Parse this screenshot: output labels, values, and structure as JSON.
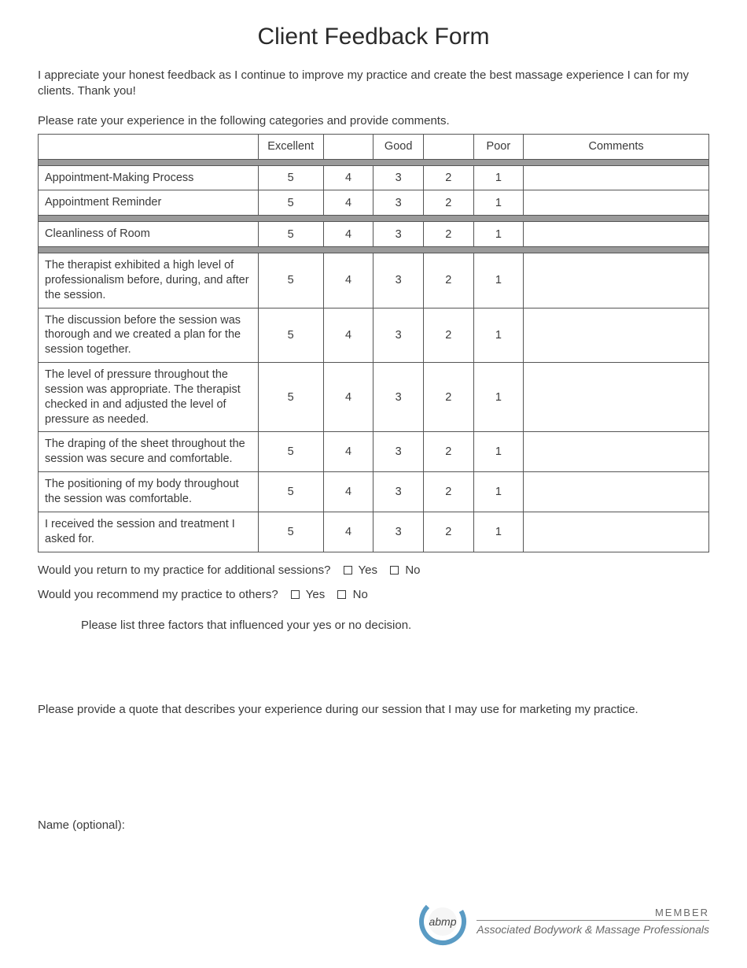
{
  "title": "Client Feedback Form",
  "intro": "I appreciate your honest feedback as I continue to improve my practice and create the best massage experience I can for my clients. Thank you!",
  "instruct": "Please rate your experience in the following categories and provide comments.",
  "table": {
    "headers": {
      "blank": "",
      "excellent": "Excellent",
      "c4": "",
      "good": "Good",
      "c2": "",
      "poor": "Poor",
      "comments": "Comments"
    },
    "rating_values": [
      "5",
      "4",
      "3",
      "2",
      "1"
    ],
    "groups": [
      {
        "rows": [
          {
            "label": "Appointment-Making Process"
          },
          {
            "label": "Appointment Reminder"
          }
        ]
      },
      {
        "rows": [
          {
            "label": "Cleanliness of Room"
          }
        ]
      },
      {
        "rows": [
          {
            "label": "The therapist exhibited a high level of professionalism before, during, and after the session."
          },
          {
            "label": "The discussion before the session was thorough and we created a plan for the session together."
          },
          {
            "label": "The level of pressure throughout the session was appropriate. The therapist checked in and adjusted the level of pressure as needed."
          },
          {
            "label": "The draping of the sheet throughout the session was secure and comfortable."
          },
          {
            "label": "The positioning of my body throughout the session was comfortable."
          },
          {
            "label": "I received the session and treatment I asked for."
          }
        ]
      }
    ]
  },
  "questions": {
    "return": "Would you return to my practice for additional sessions?",
    "recommend": "Would you recommend my practice to others?",
    "yes": "Yes",
    "no": "No"
  },
  "factors": "Please list three factors that influenced your yes or no decision.",
  "quote_prompt": "Please provide a quote that describes your experience during our session that I may use for marketing my practice.",
  "name_optional": "Name (optional):",
  "footer": {
    "member": "MEMBER",
    "org": "Associated Bodywork & Massage Professionals",
    "logo_text": "abmp",
    "logo_ring_color": "#5a9bc4",
    "logo_inner_color": "#e8e8e8"
  },
  "colors": {
    "text": "#3a3a3a",
    "border": "#555555",
    "separator": "#9a9a9a",
    "background": "#ffffff"
  }
}
